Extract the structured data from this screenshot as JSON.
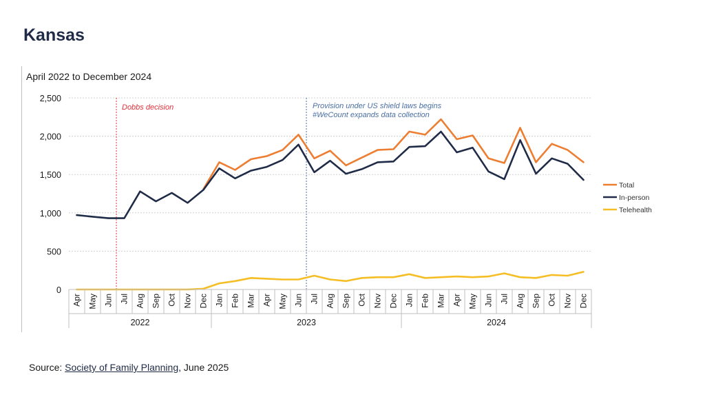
{
  "page": {
    "title": "Kansas"
  },
  "source": {
    "prefix": "Source: ",
    "link_text": "Society of Family Planning",
    "suffix": ", June 2025"
  },
  "colors": {
    "total": "#ED7D31",
    "in_person": "#1F2B47",
    "telehealth": "#F5BE24",
    "dobbs": "#E0303A",
    "shield": "#4A6FA5",
    "grid": "#D0D0D0",
    "axis_text": "#1a1a1a"
  },
  "chart_data": {
    "type": "line",
    "title": "April 2022 to December 2024",
    "xlabel": "",
    "ylabel": "",
    "ylim": [
      0,
      2500
    ],
    "yticks": [
      0,
      500,
      1000,
      1500,
      2000,
      2500
    ],
    "ytick_labels": [
      "0",
      "500",
      "1,000",
      "1,500",
      "2,000",
      "2,500"
    ],
    "grid": true,
    "legend_position": "right",
    "categories": [
      "Apr",
      "May",
      "Jun",
      "Jul",
      "Aug",
      "Sep",
      "Oct",
      "Nov",
      "Dec",
      "Jan",
      "Feb",
      "Mar",
      "Apr",
      "May",
      "Jun",
      "Jul",
      "Aug",
      "Sep",
      "Oct",
      "Nov",
      "Dec",
      "Jan",
      "Feb",
      "Mar",
      "Apr",
      "May",
      "Jun",
      "Jul",
      "Aug",
      "Sep",
      "Oct",
      "Nov",
      "Dec"
    ],
    "years": [
      {
        "label": "2022",
        "start": 0,
        "end": 8
      },
      {
        "label": "2023",
        "start": 9,
        "end": 20
      },
      {
        "label": "2024",
        "start": 21,
        "end": 32
      }
    ],
    "series": [
      {
        "name": "Total",
        "color_key": "total",
        "values": [
          null,
          null,
          null,
          null,
          null,
          null,
          null,
          null,
          1310,
          1660,
          1560,
          1700,
          1740,
          1820,
          2020,
          1710,
          1810,
          1620,
          1720,
          1820,
          1830,
          2060,
          2020,
          2220,
          1960,
          2010,
          1710,
          1650,
          2110,
          1660,
          1900,
          1820,
          1660
        ]
      },
      {
        "name": "In-person",
        "color_key": "in_person",
        "values": [
          970,
          950,
          930,
          930,
          1280,
          1150,
          1260,
          1130,
          1300,
          1580,
          1450,
          1550,
          1600,
          1690,
          1890,
          1530,
          1680,
          1510,
          1570,
          1660,
          1670,
          1860,
          1870,
          2060,
          1790,
          1850,
          1540,
          1440,
          1950,
          1510,
          1710,
          1640,
          1430
        ]
      },
      {
        "name": "Telehealth",
        "color_key": "telehealth",
        "values": [
          0,
          0,
          0,
          0,
          0,
          0,
          0,
          0,
          10,
          80,
          110,
          150,
          140,
          130,
          130,
          180,
          130,
          110,
          150,
          160,
          160,
          200,
          150,
          160,
          170,
          160,
          170,
          210,
          160,
          150,
          190,
          180,
          230
        ]
      }
    ],
    "annotations": [
      {
        "text": "Dobbs decision",
        "after_index": 2,
        "color_key": "dobbs"
      },
      {
        "text": "Provision under US shield laws begins",
        "text2": "#WeCount expands data collection",
        "after_index": 14,
        "color_key": "shield"
      }
    ]
  }
}
